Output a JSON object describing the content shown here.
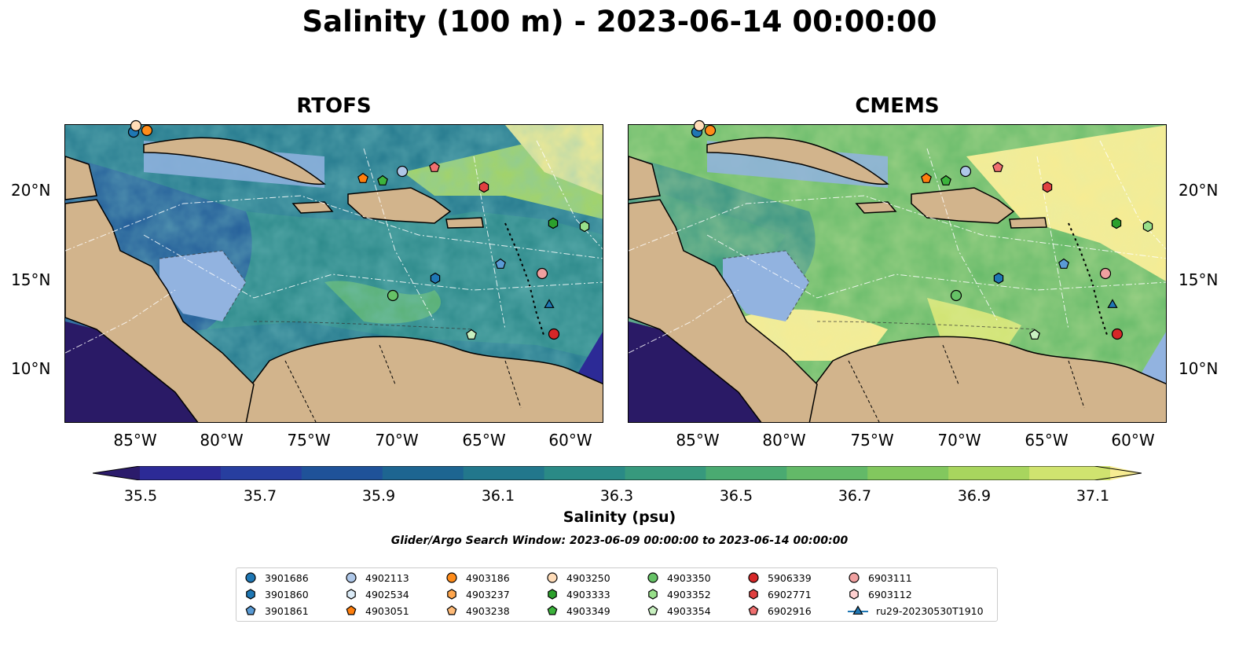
{
  "title": "Salinity (100 m) - 2023-06-14 00:00:00",
  "panels": [
    {
      "id": "rtofs",
      "title": "RTOFS"
    },
    {
      "id": "cmems",
      "title": "CMEMS"
    }
  ],
  "lat_labels": [
    "20°N",
    "15°N",
    "10°N"
  ],
  "lon_labels": [
    "85°W",
    "80°W",
    "75°W",
    "70°W",
    "65°W",
    "60°W"
  ],
  "colorbar": {
    "label": "Salinity (psu)",
    "ticks": [
      "35.5",
      "35.7",
      "35.9",
      "36.1",
      "36.3",
      "36.5",
      "36.7",
      "36.9",
      "37.1"
    ],
    "colors": [
      "#2b1b6b",
      "#2c2a96",
      "#273e9f",
      "#1f5299",
      "#1d6591",
      "#22778c",
      "#2a8a86",
      "#37997d",
      "#4aaa71",
      "#63b968",
      "#82c75e",
      "#a8d55e",
      "#d0e36f",
      "#f7ec92"
    ]
  },
  "search_window": "Glider/Argo Search Window: 2023-06-09 00:00:00 to 2023-06-14 00:00:00",
  "colors": {
    "land": "#d2b48c",
    "shallow": "#92b3e0",
    "deep": "#2a1a66"
  },
  "legend": [
    {
      "label": "3901686",
      "marker": "circle",
      "color": "#1f77b4"
    },
    {
      "label": "3901860",
      "marker": "hexagon",
      "color": "#1f77b4"
    },
    {
      "label": "3901861",
      "marker": "pentagon",
      "color": "#5a9bd5"
    },
    {
      "label": "4902113",
      "marker": "circle",
      "color": "#aec7e8"
    },
    {
      "label": "4902534",
      "marker": "hexagon",
      "color": "#dcecf8"
    },
    {
      "label": "4903051",
      "marker": "pentagon",
      "color": "#ff7f0e"
    },
    {
      "label": "4903186",
      "marker": "circle",
      "color": "#ff8c1a"
    },
    {
      "label": "4903237",
      "marker": "hexagon",
      "color": "#ffa64d"
    },
    {
      "label": "4903238",
      "marker": "pentagon",
      "color": "#ffbb78"
    },
    {
      "label": "4903250",
      "marker": "circle",
      "color": "#ffdcb8"
    },
    {
      "label": "4903333",
      "marker": "hexagon",
      "color": "#2ca02c"
    },
    {
      "label": "4903349",
      "marker": "pentagon",
      "color": "#3cb33c"
    },
    {
      "label": "4903350",
      "marker": "circle",
      "color": "#66c266"
    },
    {
      "label": "4903352",
      "marker": "hexagon",
      "color": "#98df8a"
    },
    {
      "label": "4903354",
      "marker": "pentagon",
      "color": "#c8f0c0"
    },
    {
      "label": "5906339",
      "marker": "circle",
      "color": "#d62728"
    },
    {
      "label": "6902771",
      "marker": "hexagon",
      "color": "#e04040"
    },
    {
      "label": "6902916",
      "marker": "pentagon",
      "color": "#f07070"
    },
    {
      "label": "6903111",
      "marker": "circle",
      "color": "#f0a0a0"
    },
    {
      "label": "6903112",
      "marker": "hexagon",
      "color": "#ffd0d0"
    },
    {
      "label": "ru29-20230530T1910",
      "marker": "triangle",
      "color": "#1f77b4"
    }
  ]
}
